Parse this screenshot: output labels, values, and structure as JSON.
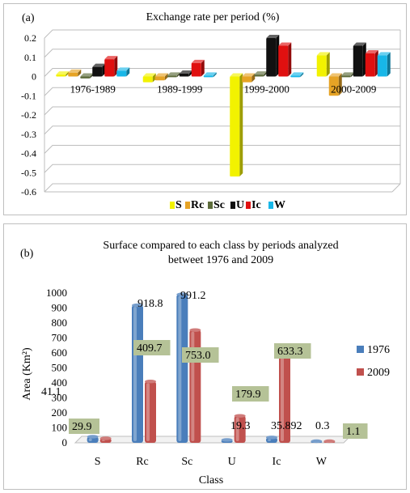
{
  "chart_data": [
    {
      "type": "bar",
      "panel_label": "(a)",
      "title": "Exchange rate per period (%)",
      "xlabel": "",
      "ylabel": "",
      "categories": [
        "1976-1989",
        "1989-1999",
        "1999-2000",
        "2000-2009"
      ],
      "ylim": [
        -0.6,
        0.2
      ],
      "yticks": [
        "0.2",
        "0.1",
        "0",
        "-0.1",
        "-0.2",
        "-0.3",
        "-0.4",
        "-0.5",
        "-0.6"
      ],
      "ytick_values": [
        0.2,
        0.1,
        0,
        -0.1,
        -0.2,
        -0.3,
        -0.4,
        -0.5,
        -0.6
      ],
      "grid": true,
      "legend_position": "bottom",
      "series": [
        {
          "name": "S",
          "color": "#f2f200",
          "values": [
            0.01,
            -0.03,
            -0.52,
            0.11
          ]
        },
        {
          "name": "Rc",
          "color": "#e6a325",
          "values": [
            0.02,
            -0.02,
            -0.03,
            -0.1
          ]
        },
        {
          "name": "Sc",
          "color": "#5c6b3a",
          "values": [
            -0.01,
            0.005,
            0.01,
            0.005
          ]
        },
        {
          "name": "U",
          "color": "#111111",
          "values": [
            0.05,
            0.015,
            0.2,
            0.16
          ]
        },
        {
          "name": "Ic",
          "color": "#e01010",
          "values": [
            0.09,
            0.07,
            0.16,
            0.12
          ]
        },
        {
          "name": "W",
          "color": "#18b7e8",
          "values": [
            0.03,
            0.005,
            0.005,
            0.11
          ]
        }
      ]
    },
    {
      "type": "bar",
      "panel_label": "(b)",
      "title": "Surface compared to each class by periods analyzed",
      "subtitle": "betweet 1976 and 2009",
      "xlabel": "Class",
      "ylabel": "Area (Km²)",
      "categories": [
        "S",
        "Rc",
        "Sc",
        "U",
        "Ic",
        "W"
      ],
      "ylim": [
        0,
        1000
      ],
      "yticks": [
        "1000",
        "900",
        "800",
        "700",
        "600",
        "500",
        "400",
        "300",
        "200",
        "100",
        "0"
      ],
      "ytick_values": [
        1000,
        900,
        800,
        700,
        600,
        500,
        400,
        300,
        200,
        100,
        0
      ],
      "grid": false,
      "legend_position": "right",
      "series": [
        {
          "name": "1976",
          "color": "#4a7ebb",
          "values": [
            41.1,
            918.8,
            991.2,
            19.3,
            35.892,
            0.3
          ],
          "labels": [
            "41.1",
            "918.8",
            "991.2",
            "19.3",
            "35.892",
            "0.3"
          ]
        },
        {
          "name": "2009",
          "color": "#c0504d",
          "values": [
            29.9,
            409.7,
            753.0,
            179.9,
            633.3,
            1.1
          ],
          "labels": [
            "29.9",
            "409.7",
            "753.0",
            "179.9",
            "633.3",
            "1.1"
          ]
        }
      ]
    }
  ]
}
